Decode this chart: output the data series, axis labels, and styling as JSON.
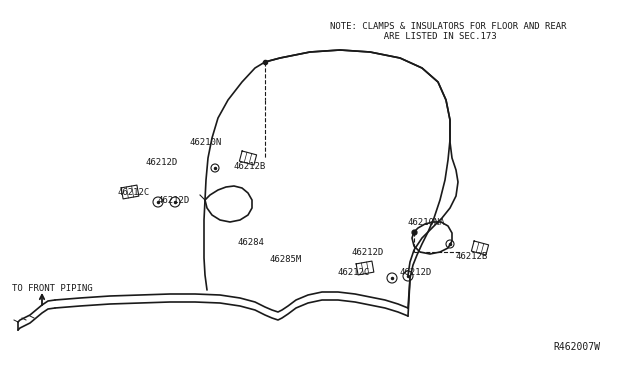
{
  "bg_color": "#ffffff",
  "line_color": "#1a1a1a",
  "note_line1": "NOTE: CLAMPS & INSULATORS FOR FLOOR AND REAR",
  "note_line2": "          ARE LISTED IN SEC.173",
  "watermark": "R462007W",
  "front_piping_label": "TO FRONT PIPING",
  "fig_width": 6.4,
  "fig_height": 3.72,
  "dpi": 100
}
